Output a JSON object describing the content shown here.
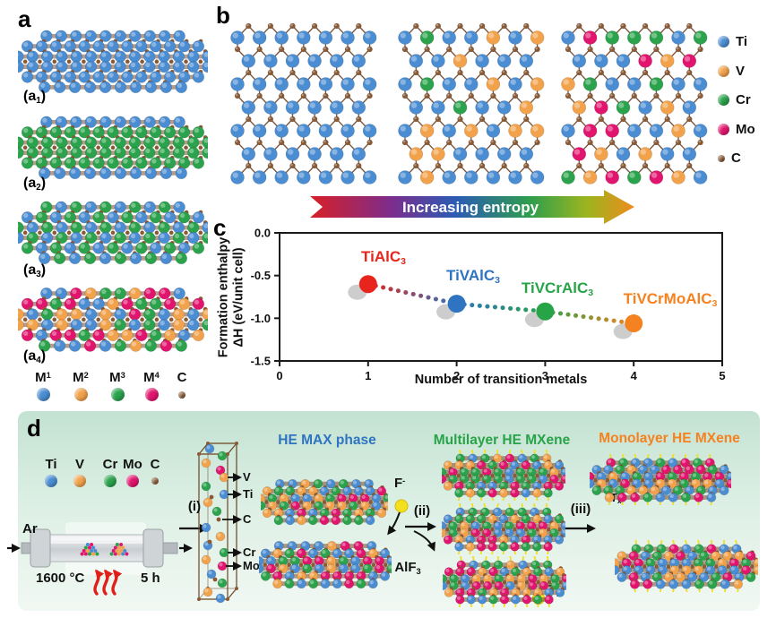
{
  "colors": {
    "Ti": "#4a8dd3",
    "V": "#f2a24b",
    "Cr": "#2aa34c",
    "Mo": "#e2156e",
    "C": "#8a5a35",
    "Tx": "#f2df1e",
    "rod_brown": "#7a4a2c",
    "shadow_gray": "#c0c0c0",
    "heat_red": "#e02018"
  },
  "element_legend": [
    {
      "label": "Ti",
      "color_key": "Ti"
    },
    {
      "label": "V",
      "color_key": "V"
    },
    {
      "label": "Cr",
      "color_key": "Cr"
    },
    {
      "label": "Mo",
      "color_key": "Mo"
    },
    {
      "label": "C",
      "color_key": "C"
    }
  ],
  "panel_a": {
    "label": "a",
    "structures": [
      {
        "prefix": "(a",
        "sub": "1",
        "suffix": ")"
      },
      {
        "prefix": "(a",
        "sub": "2",
        "suffix": ")"
      },
      {
        "prefix": "(a",
        "sub": "3",
        "suffix": ")"
      },
      {
        "prefix": "(a",
        "sub": "4",
        "suffix": ")"
      }
    ],
    "legend": [
      {
        "base": "M",
        "sup": "1",
        "color_key": "Ti"
      },
      {
        "base": "M",
        "sup": "2",
        "color_key": "V"
      },
      {
        "base": "M",
        "sup": "3",
        "color_key": "Cr"
      },
      {
        "base": "M",
        "sup": "4",
        "color_key": "Mo"
      },
      {
        "base": "C",
        "sup": "",
        "color_key": "C"
      }
    ]
  },
  "panel_b": {
    "label": "b",
    "entropy_arrow_text": "Increasing entropy",
    "entropy_gradient": [
      "#d81f26",
      "#7c2d8c",
      "#2b5cb4",
      "#2f9e4c",
      "#9ab51f",
      "#ee8c1c"
    ]
  },
  "panel_c": {
    "label": "c"
  },
  "chart_data": {
    "type": "scatter",
    "x": [
      1,
      2,
      3,
      4
    ],
    "y": [
      -0.6,
      -0.83,
      -0.92,
      -1.06
    ],
    "point_labels": [
      {
        "text": "TiAlC",
        "sub": "3"
      },
      {
        "text": "TiVAlC",
        "sub": "3"
      },
      {
        "text": "TiVCrAlC",
        "sub": "3"
      },
      {
        "text": "TiVCrMoAlC",
        "sub": "3"
      }
    ],
    "point_colors": [
      "#e8251c",
      "#2e74c0",
      "#27a348",
      "#f58220"
    ],
    "xlabel": "Number of transition metals",
    "ylabel_line1": "Formation enthalpy",
    "ylabel_line2": "ΔH (eV/unit cell)",
    "xlim": [
      0,
      5
    ],
    "ylim": [
      -1.5,
      0
    ],
    "xticks": [
      "0",
      "1",
      "2",
      "3",
      "4",
      "5"
    ],
    "yticks": [
      "0.0",
      "-0.5",
      "-1.0",
      "-1.5"
    ],
    "line_style": "dotted",
    "legend_position": "none",
    "grid": false
  },
  "panel_d": {
    "label": "d",
    "gas_label": "Ar",
    "temperature": "1600 °C",
    "duration": "5 h",
    "steps": [
      "(i)",
      "(ii)",
      "(iii)"
    ],
    "unit_cell_labels": [
      "V",
      "Ti",
      "C",
      "Cr",
      "Mo"
    ],
    "stage_titles": [
      {
        "text": "HE MAX phase",
        "color": "#2e74c0"
      },
      {
        "text": "Multilayer HE MXene",
        "color": "#27a348"
      },
      {
        "text": "Monolayer HE MXene",
        "color": "#f58220"
      }
    ],
    "etchant": {
      "base": "F",
      "sup": "-"
    },
    "byproduct": {
      "base": "AlF",
      "sub": "3"
    },
    "termination": {
      "base": "T",
      "sub": "x"
    }
  }
}
